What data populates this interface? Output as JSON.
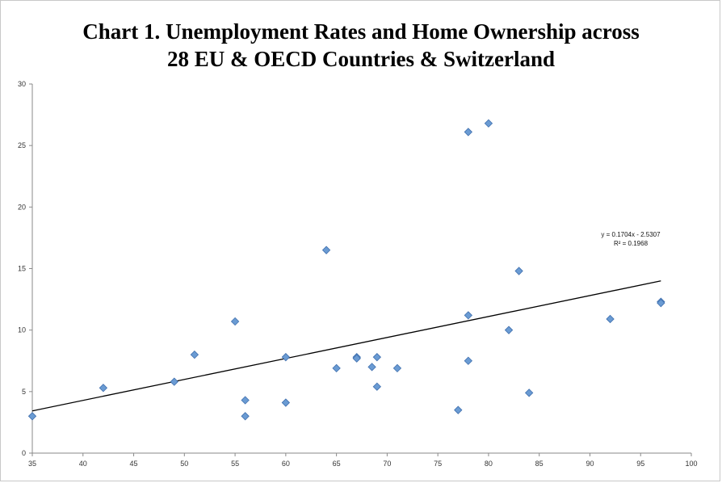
{
  "chart_data": {
    "type": "scatter",
    "title_lines": [
      "Chart 1.  Unemployment Rates and Home Ownership across",
      "28 EU & OECD Countries & Switzerland"
    ],
    "xlabel": "",
    "ylabel": "",
    "xlim": [
      35,
      100
    ],
    "ylim": [
      0,
      30
    ],
    "xticks": [
      35,
      40,
      45,
      50,
      55,
      60,
      65,
      70,
      75,
      80,
      85,
      90,
      95,
      100
    ],
    "yticks": [
      0,
      5,
      10,
      15,
      20,
      25,
      30
    ],
    "grid": false,
    "legend": "none",
    "marker_color": "#6a9bd3",
    "marker_edge_color": "#3f6fae",
    "trendline_color": "#000000",
    "points": [
      {
        "x": 35,
        "y": 3.0
      },
      {
        "x": 42,
        "y": 5.3
      },
      {
        "x": 49,
        "y": 5.8
      },
      {
        "x": 51,
        "y": 8.0
      },
      {
        "x": 55,
        "y": 10.7
      },
      {
        "x": 56,
        "y": 4.3
      },
      {
        "x": 56,
        "y": 3.0
      },
      {
        "x": 60,
        "y": 7.8
      },
      {
        "x": 60,
        "y": 4.1
      },
      {
        "x": 64,
        "y": 16.5
      },
      {
        "x": 65,
        "y": 6.9
      },
      {
        "x": 67,
        "y": 7.8
      },
      {
        "x": 67,
        "y": 7.7
      },
      {
        "x": 68.5,
        "y": 7.0
      },
      {
        "x": 69,
        "y": 7.8
      },
      {
        "x": 69,
        "y": 5.4
      },
      {
        "x": 71,
        "y": 6.9
      },
      {
        "x": 77,
        "y": 3.5
      },
      {
        "x": 78,
        "y": 26.1
      },
      {
        "x": 78,
        "y": 11.2
      },
      {
        "x": 78,
        "y": 7.5
      },
      {
        "x": 80,
        "y": 26.8
      },
      {
        "x": 82,
        "y": 10.0
      },
      {
        "x": 83,
        "y": 14.8
      },
      {
        "x": 84,
        "y": 4.9
      },
      {
        "x": 92,
        "y": 10.9
      },
      {
        "x": 97,
        "y": 12.3
      },
      {
        "x": 97,
        "y": 12.2
      }
    ],
    "trendline": {
      "slope": 0.1704,
      "intercept": -2.5307,
      "x_range": [
        35,
        97
      ],
      "equation_label": "y = 0.1704x - 2.5307",
      "r2_label": "R² = 0.1968"
    }
  }
}
